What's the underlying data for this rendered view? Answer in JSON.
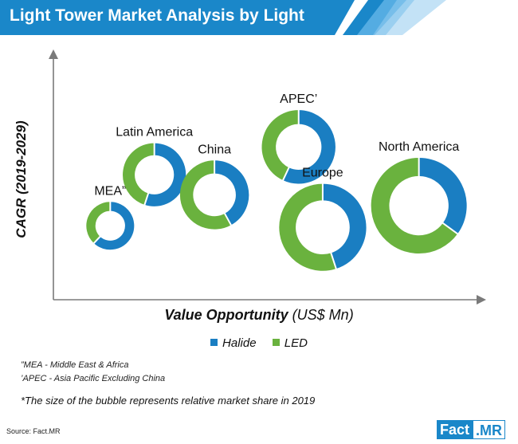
{
  "header": {
    "title": "Light Tower Market Analysis by Light"
  },
  "colors": {
    "halide": "#1a7ec2",
    "led": "#6ab23e",
    "header": "#1a87c9"
  },
  "chart_data": {
    "type": "bubble-donut",
    "title": "Light Tower Market Analysis by Light",
    "xlabel_main": "Value Opportunity",
    "xlabel_unit": "(US$ Mn)",
    "ylabel": "CAGR (2019-2029)",
    "legend": [
      {
        "name": "Halide",
        "color": "#1a7ec2"
      },
      {
        "name": "LED",
        "color": "#6ab23e"
      }
    ],
    "bubbles": [
      {
        "label": "MEA”",
        "x": 0.11,
        "y": 0.21,
        "size": 0.5,
        "halide_share": 0.62
      },
      {
        "label": "Latin America",
        "x": 0.22,
        "y": 0.54,
        "size": 0.66,
        "halide_share": 0.55
      },
      {
        "label": "China",
        "x": 0.37,
        "y": 0.41,
        "size": 0.72,
        "halide_share": 0.42
      },
      {
        "label": "APEC’",
        "x": 0.58,
        "y": 0.72,
        "size": 0.77,
        "halide_share": 0.57
      },
      {
        "label": "Europe",
        "x": 0.64,
        "y": 0.2,
        "size": 0.91,
        "halide_share": 0.45
      },
      {
        "label": "North America",
        "x": 0.88,
        "y": 0.34,
        "size": 1.0,
        "halide_share": 0.35
      }
    ]
  },
  "notes": {
    "mea": "”MEA - Middle East & Africa",
    "apec": "’APEC - Asia Pacific Excluding China",
    "bubble": "*The size of the bubble represents relative market share in 2019"
  },
  "source": "Source: Fact.MR",
  "brand": {
    "part1": "Fact",
    "part2": ".MR"
  }
}
